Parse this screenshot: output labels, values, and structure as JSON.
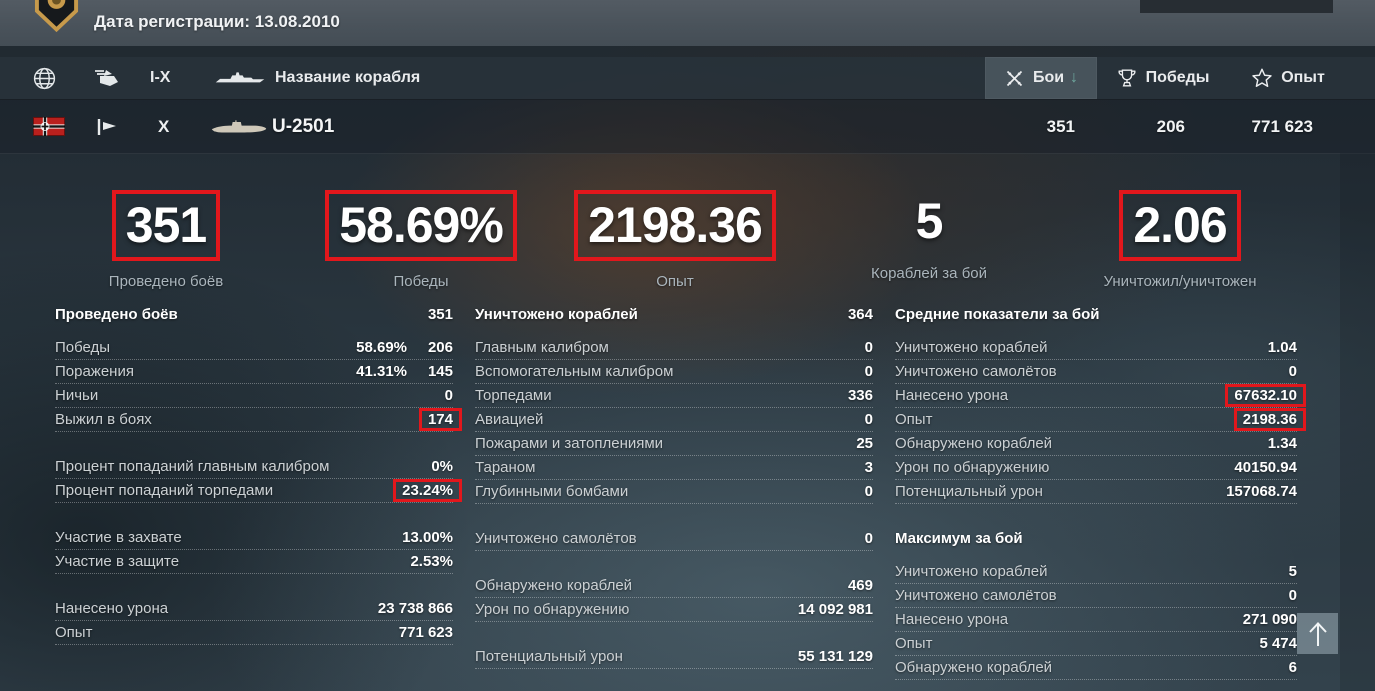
{
  "topbar": {
    "registration_label": "Дата регистрации: 13.08.2010"
  },
  "table": {
    "header": {
      "tier_label": "I-X",
      "ship_name_label": "Название корабля",
      "battles_label": "Бои",
      "sort_arrow": "↓",
      "wins_label": "Победы",
      "exp_label": "Опыт"
    },
    "ship_row": {
      "nation": "germany",
      "tier": "X",
      "name": "U-2501",
      "battles": "351",
      "wins": "206",
      "exp": "771 623"
    }
  },
  "summary": [
    {
      "value": "351",
      "label": "Проведено боёв",
      "highlighted": true
    },
    {
      "value": "58.69%",
      "label": "Победы",
      "highlighted": true
    },
    {
      "value": "2198.36",
      "label": "Опыт",
      "highlighted": true
    },
    {
      "value": "5",
      "label": "Кораблей за бой",
      "highlighted": false
    },
    {
      "value": "2.06",
      "label": "Уничтожил/уничтожен",
      "highlighted": true
    }
  ],
  "columns": {
    "left": {
      "rows": [
        {
          "type": "header",
          "label": "Проведено боёв",
          "value": "351"
        },
        {
          "type": "row",
          "label": "Победы",
          "value2": "58.69%",
          "value": "206"
        },
        {
          "type": "row",
          "label": "Поражения",
          "value2": "41.31%",
          "value": "145"
        },
        {
          "type": "row",
          "label": "Ничьи",
          "value": "0"
        },
        {
          "type": "row",
          "label": "Выжил в боях",
          "value": "174",
          "boxed": true
        },
        {
          "type": "spacer"
        },
        {
          "type": "row",
          "label": "Процент попаданий главным калибром",
          "value": "0%"
        },
        {
          "type": "row",
          "label": "Процент попаданий торпедами",
          "value": "23.24%",
          "boxed": true
        },
        {
          "type": "spacer"
        },
        {
          "type": "row",
          "label": "Участие в захвате",
          "value": "13.00%"
        },
        {
          "type": "row",
          "label": "Участие в защите",
          "value": "2.53%"
        },
        {
          "type": "spacer"
        },
        {
          "type": "row",
          "label": "Нанесено урона",
          "value": "23 738 866"
        },
        {
          "type": "row",
          "label": "Опыт",
          "value": "771 623"
        }
      ]
    },
    "middle": {
      "rows": [
        {
          "type": "header",
          "label": "Уничтожено кораблей",
          "value": "364"
        },
        {
          "type": "row",
          "label": "Главным калибром",
          "value": "0"
        },
        {
          "type": "row",
          "label": "Вспомогательным калибром",
          "value": "0"
        },
        {
          "type": "row",
          "label": "Торпедами",
          "value": "336"
        },
        {
          "type": "row",
          "label": "Авиацией",
          "value": "0"
        },
        {
          "type": "row",
          "label": "Пожарами и затоплениями",
          "value": "25"
        },
        {
          "type": "row",
          "label": "Тараном",
          "value": "3"
        },
        {
          "type": "row",
          "label": "Глубинными бомбами",
          "value": "0"
        },
        {
          "type": "spacer"
        },
        {
          "type": "row",
          "label": "Уничтожено самолётов",
          "value": "0"
        },
        {
          "type": "spacer"
        },
        {
          "type": "row",
          "label": "Обнаружено кораблей",
          "value": "469"
        },
        {
          "type": "row",
          "label": "Урон по обнаружению",
          "value": "14 092 981"
        },
        {
          "type": "spacer"
        },
        {
          "type": "row",
          "label": "Потенциальный урон",
          "value": "55 131 129"
        }
      ]
    },
    "right": {
      "rows": [
        {
          "type": "header",
          "label": "Средние показатели за бой"
        },
        {
          "type": "row",
          "label": "Уничтожено кораблей",
          "value": "1.04"
        },
        {
          "type": "row",
          "label": "Уничтожено самолётов",
          "value": "0"
        },
        {
          "type": "row",
          "label": "Нанесено урона",
          "value": "67632.10",
          "boxed": true
        },
        {
          "type": "row",
          "label": "Опыт",
          "value": "2198.36",
          "boxed": true
        },
        {
          "type": "row",
          "label": "Обнаружено кораблей",
          "value": "1.34"
        },
        {
          "type": "row",
          "label": "Урон по обнаружению",
          "value": "40150.94"
        },
        {
          "type": "row",
          "label": "Потенциальный урон",
          "value": "157068.74"
        },
        {
          "type": "spacer"
        },
        {
          "type": "header",
          "label": "Максимум за бой"
        },
        {
          "type": "row",
          "label": "Уничтожено кораблей",
          "value": "5"
        },
        {
          "type": "row",
          "label": "Уничтожено самолётов",
          "value": "0"
        },
        {
          "type": "row",
          "label": "Нанесено урона",
          "value": "271 090"
        },
        {
          "type": "row",
          "label": "Опыт",
          "value": "5 474"
        },
        {
          "type": "row",
          "label": "Обнаружено кораблей",
          "value": "6"
        }
      ]
    }
  },
  "colors": {
    "highlight_box_red": "#E2171C",
    "sort_arrow_teal": "#6FA79E",
    "badge_gold": "#C79A4B",
    "topbar_gray": "#49525A"
  },
  "icons": {
    "player-badge-icon": "shield emblem",
    "globe-icon": "nation filter",
    "ship-class-filter-icon": "stacked class flags",
    "ship-silhouette-icon": "surface ship",
    "crossed-swords-icon": "battles",
    "trophy-icon": "wins",
    "star-icon": "experience",
    "nation-flag-germany-icon": "german navy flag",
    "pennant-icon": "flag pennant",
    "submarine-silhouette-icon": "submarine U-2501",
    "arrow-up-icon": "scroll to top"
  }
}
